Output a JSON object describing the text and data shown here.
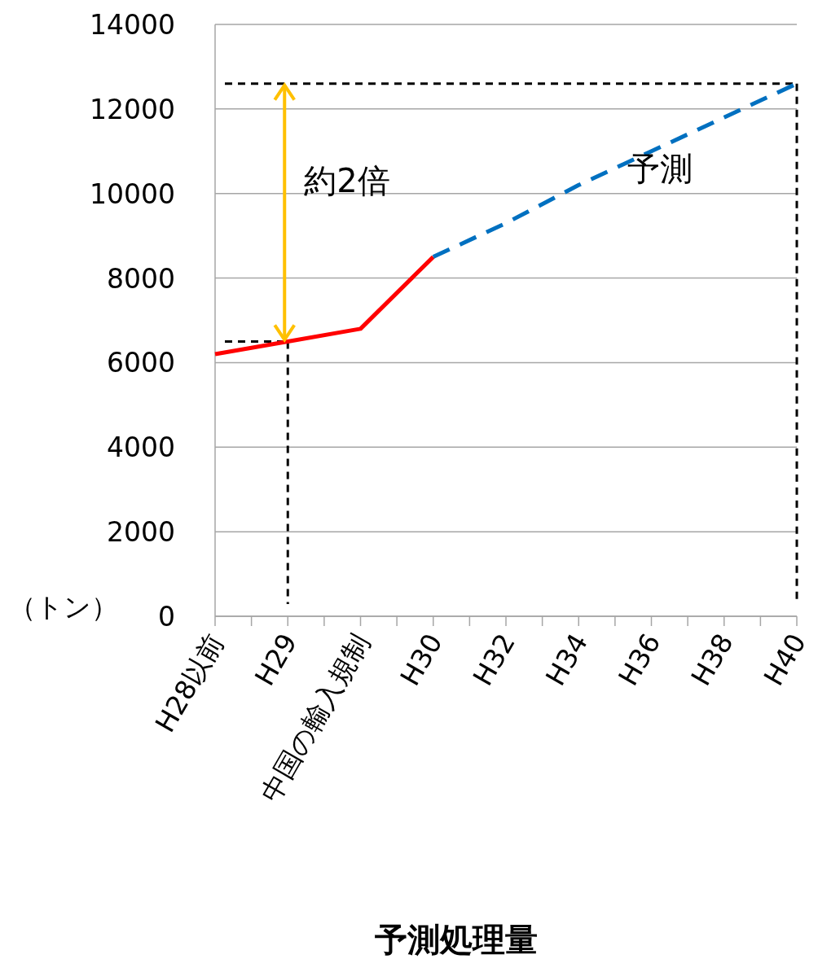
{
  "chart_data": {
    "type": "line",
    "xlabel": "予測処理量",
    "ylabel": "（トン）",
    "categories": [
      "H28以前",
      "H29",
      "中国の輸入規制",
      "H30",
      "H32",
      "H34",
      "H36",
      "H38",
      "H40"
    ],
    "series": [
      {
        "color": "#ff0000",
        "line_style": "solid",
        "values": [
          6200,
          6500,
          6800,
          8500,
          null,
          null,
          null,
          null,
          null
        ]
      },
      {
        "name": "予測",
        "color": "#0070c0",
        "line_style": "dashed",
        "values": [
          null,
          null,
          null,
          8500,
          9300,
          10200,
          11000,
          11800,
          12600
        ]
      }
    ],
    "ylim": [
      0,
      14000
    ],
    "yticks": [
      0,
      2000,
      4000,
      6000,
      8000,
      10000,
      12000,
      14000
    ],
    "grid": "y",
    "ref_lines": [
      {
        "axis": "y",
        "value": 12600,
        "color": "#000000",
        "line_style": "dashed"
      },
      {
        "axis": "y",
        "value": 6500,
        "color": "#000000",
        "line_style": "dashed"
      },
      {
        "axis": "x",
        "value": "H29",
        "color": "#000000",
        "line_style": "dashed"
      },
      {
        "axis": "x",
        "value": "H40",
        "color": "#000000",
        "line_style": "dashed"
      }
    ],
    "annotations": [
      "約2倍"
    ]
  }
}
